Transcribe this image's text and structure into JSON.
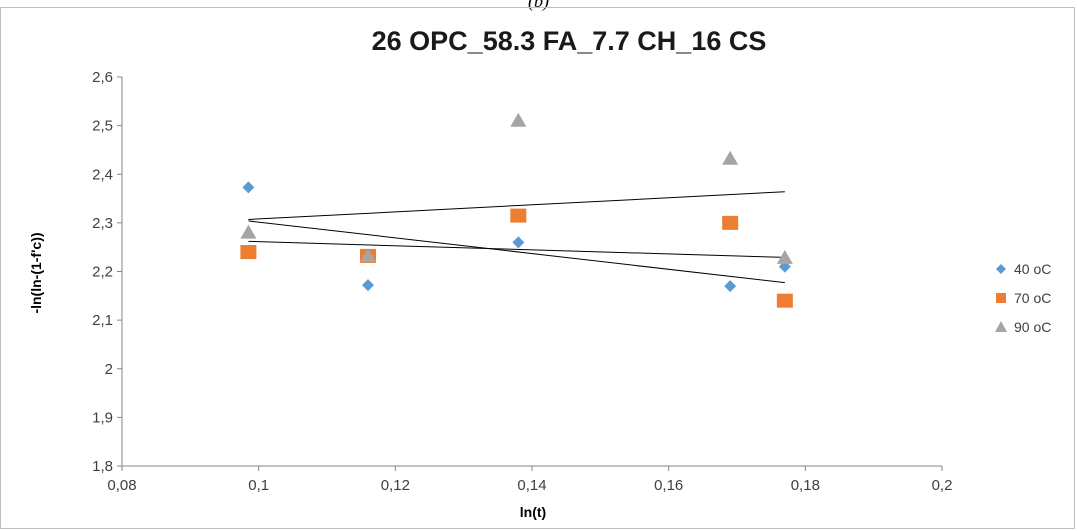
{
  "caption": "(b)",
  "chart_data": {
    "type": "scatter",
    "title": "26 OPC_58.3 FA_7.7 CH_16 CS",
    "xlabel": "ln(t)",
    "ylabel": "-ln(ln-(1-f'c))",
    "xlim": [
      0.08,
      0.2
    ],
    "ylim": [
      1.8,
      2.6
    ],
    "x_ticks": [
      0.08,
      0.1,
      0.12,
      0.14,
      0.16,
      0.18,
      0.2
    ],
    "x_tick_labels": [
      "0,08",
      "0,1",
      "0,12",
      "0,14",
      "0,16",
      "0,18",
      "0,2"
    ],
    "y_ticks": [
      1.8,
      1.9,
      2.0,
      2.1,
      2.2,
      2.3,
      2.4,
      2.5,
      2.6
    ],
    "y_tick_labels": [
      "1,8",
      "1,9",
      "2",
      "2,1",
      "2,2",
      "2,3",
      "2,4",
      "2,5",
      "2,6"
    ],
    "grid": false,
    "legend_position": "right",
    "series": [
      {
        "name": "40 oC",
        "marker": "diamond",
        "color": "#5b9bd5",
        "x": [
          0.0985,
          0.116,
          0.138,
          0.169,
          0.177
        ],
        "y": [
          2.373,
          2.172,
          2.26,
          2.17,
          2.21
        ]
      },
      {
        "name": "70 oC",
        "marker": "square",
        "color": "#ed7d31",
        "x": [
          0.0985,
          0.116,
          0.138,
          0.169,
          0.177
        ],
        "y": [
          2.24,
          2.232,
          2.315,
          2.3,
          2.14
        ]
      },
      {
        "name": "90 oC",
        "marker": "triangle",
        "color": "#a5a5a5",
        "x": [
          0.0985,
          0.116,
          0.138,
          0.169,
          0.177
        ],
        "y": [
          2.28,
          2.232,
          2.51,
          2.432,
          2.228
        ]
      }
    ],
    "trendlines": [
      {
        "series": "40 oC",
        "type": "linear",
        "x": [
          0.0985,
          0.177
        ],
        "y": [
          2.304,
          2.177
        ],
        "color": "#000000"
      },
      {
        "series": "70 oC",
        "type": "linear",
        "x": [
          0.0985,
          0.177
        ],
        "y": [
          2.262,
          2.229
        ],
        "color": "#000000"
      },
      {
        "series": "90 oC",
        "type": "linear",
        "x": [
          0.0985,
          0.177
        ],
        "y": [
          2.307,
          2.364
        ],
        "color": "#000000"
      }
    ]
  }
}
